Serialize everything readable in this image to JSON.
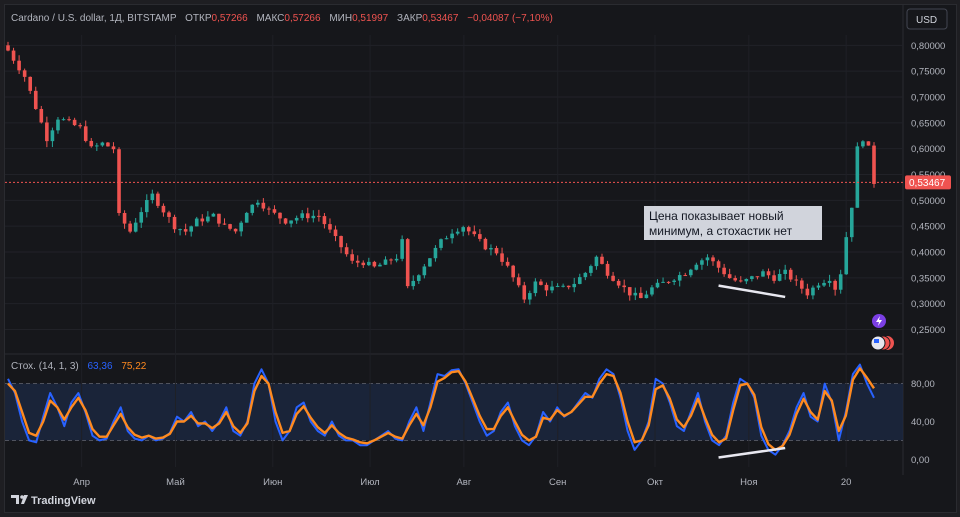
{
  "header": {
    "symbol": "Cardano / U.S. dollar, 1Д, BITSTAMP",
    "open_label": "ОТКР",
    "open_value": "0,57266",
    "high_label": "МАКС",
    "high_value": "0,57266",
    "low_label": "МИН",
    "low_value": "0,51997",
    "close_label": "ЗАКР",
    "close_value": "0,53467",
    "change": "−0,04087 (−7,10%)"
  },
  "currency_button": "USD",
  "annotation": "Цена показывает новый\nминимум, а стохастик нет",
  "last_price_tag": "0,53467",
  "stoch_legend": {
    "name": "Стох. (14, 1, 3)",
    "k": "63,36",
    "d": "75,22"
  },
  "brand": "TradingView",
  "colors": {
    "up": "#26a69a",
    "down": "#ef5350",
    "k_line": "#2962ff",
    "d_line": "#ff8a1f",
    "text": "#b2b5be",
    "bg": "#16171b"
  },
  "chart_data": [
    {
      "type": "candlestick",
      "title": "Cardano / U.S. dollar, 1Д, BITSTAMP",
      "x_labels": [
        "Апр",
        "Май",
        "Июн",
        "Июл",
        "Авг",
        "Сен",
        "Окт",
        "Ноя",
        "20"
      ],
      "y_ticks": [
        "0,80000",
        "0,75000",
        "0,70000",
        "0,65000",
        "0,60000",
        "0,55000",
        "0,50000",
        "0,45000",
        "0,40000",
        "0,35000",
        "0,30000",
        "0,25000"
      ],
      "ylim": [
        0.22,
        0.82
      ],
      "last_price": 0.53467,
      "trend_close": [
        [
          0,
          0.79
        ],
        [
          3,
          0.74
        ],
        [
          5,
          0.68
        ],
        [
          7,
          0.62
        ],
        [
          9,
          0.66
        ],
        [
          11,
          0.65
        ],
        [
          13,
          0.64
        ],
        [
          15,
          0.6
        ],
        [
          17,
          0.61
        ],
        [
          19,
          0.6
        ],
        [
          20,
          0.47
        ],
        [
          22,
          0.44
        ],
        [
          24,
          0.48
        ],
        [
          26,
          0.51
        ],
        [
          28,
          0.48
        ],
        [
          30,
          0.45
        ],
        [
          32,
          0.44
        ],
        [
          34,
          0.46
        ],
        [
          37,
          0.47
        ],
        [
          39,
          0.45
        ],
        [
          41,
          0.44
        ],
        [
          43,
          0.48
        ],
        [
          45,
          0.5
        ],
        [
          47,
          0.48
        ],
        [
          50,
          0.46
        ],
        [
          53,
          0.47
        ],
        [
          56,
          0.47
        ],
        [
          58,
          0.44
        ],
        [
          60,
          0.41
        ],
        [
          62,
          0.38
        ],
        [
          64,
          0.38
        ],
        [
          66,
          0.37
        ],
        [
          68,
          0.38
        ],
        [
          70,
          0.39
        ],
        [
          71,
          0.42
        ],
        [
          72,
          0.33
        ],
        [
          74,
          0.36
        ],
        [
          76,
          0.39
        ],
        [
          78,
          0.42
        ],
        [
          80,
          0.44
        ],
        [
          82,
          0.45
        ],
        [
          84,
          0.43
        ],
        [
          86,
          0.41
        ],
        [
          88,
          0.4
        ],
        [
          90,
          0.37
        ],
        [
          92,
          0.33
        ],
        [
          93,
          0.31
        ],
        [
          95,
          0.34
        ],
        [
          97,
          0.33
        ],
        [
          100,
          0.33
        ],
        [
          102,
          0.34
        ],
        [
          104,
          0.36
        ],
        [
          106,
          0.39
        ],
        [
          108,
          0.36
        ],
        [
          110,
          0.34
        ],
        [
          112,
          0.32
        ],
        [
          114,
          0.31
        ],
        [
          116,
          0.33
        ],
        [
          118,
          0.34
        ],
        [
          120,
          0.35
        ],
        [
          122,
          0.36
        ],
        [
          124,
          0.38
        ],
        [
          126,
          0.39
        ],
        [
          128,
          0.37
        ],
        [
          130,
          0.35
        ],
        [
          132,
          0.34
        ],
        [
          134,
          0.35
        ],
        [
          136,
          0.36
        ],
        [
          138,
          0.35
        ],
        [
          140,
          0.36
        ],
        [
          142,
          0.34
        ],
        [
          144,
          0.32
        ],
        [
          146,
          0.34
        ],
        [
          148,
          0.35
        ],
        [
          149,
          0.33
        ],
        [
          150,
          0.36
        ],
        [
          151,
          0.43
        ],
        [
          152,
          0.49
        ],
        [
          153,
          0.6
        ],
        [
          154,
          0.62
        ],
        [
          155,
          0.6
        ],
        [
          156,
          0.535
        ]
      ],
      "annotation_line": {
        "from": {
          "x_index": 128,
          "price": 0.335
        },
        "to": {
          "x_index": 140,
          "price": 0.313
        }
      }
    },
    {
      "type": "line",
      "title": "Стох. (14, 1, 3)",
      "y_ticks": [
        "80,00",
        "40,00",
        "0,00"
      ],
      "ylim": [
        -8,
        108
      ],
      "band": [
        20,
        80
      ],
      "series": [
        {
          "name": "%K",
          "values": [
            85,
            70,
            40,
            20,
            18,
            45,
            70,
            55,
            35,
            60,
            70,
            50,
            25,
            20,
            22,
            40,
            55,
            30,
            22,
            20,
            25,
            20,
            22,
            28,
            45,
            40,
            50,
            35,
            40,
            30,
            40,
            55,
            30,
            25,
            40,
            80,
            95,
            80,
            40,
            20,
            30,
            55,
            60,
            40,
            30,
            25,
            40,
            25,
            20,
            20,
            15,
            15,
            20,
            25,
            30,
            22,
            20,
            40,
            55,
            30,
            60,
            90,
            88,
            94,
            95,
            80,
            60,
            40,
            25,
            30,
            50,
            60,
            35,
            20,
            15,
            25,
            50,
            40,
            55,
            45,
            50,
            60,
            70,
            65,
            85,
            95,
            90,
            65,
            30,
            10,
            20,
            40,
            85,
            80,
            60,
            35,
            30,
            50,
            70,
            40,
            20,
            15,
            25,
            60,
            85,
            80,
            65,
            25,
            10,
            5,
            15,
            30,
            55,
            70,
            45,
            40,
            80,
            60,
            20,
            50,
            90,
            100,
            80,
            65
          ]
        },
        {
          "name": "%D",
          "values": [
            80,
            72,
            50,
            28,
            25,
            40,
            62,
            55,
            42,
            55,
            65,
            52,
            32,
            24,
            24,
            36,
            48,
            34,
            26,
            23,
            25,
            22,
            23,
            27,
            40,
            40,
            46,
            38,
            38,
            33,
            38,
            50,
            35,
            28,
            38,
            72,
            88,
            80,
            50,
            28,
            30,
            48,
            56,
            44,
            34,
            28,
            36,
            28,
            23,
            21,
            18,
            17,
            20,
            24,
            28,
            24,
            22,
            36,
            48,
            36,
            55,
            82,
            86,
            92,
            93,
            82,
            64,
            46,
            32,
            32,
            46,
            55,
            40,
            26,
            20,
            24,
            44,
            42,
            52,
            46,
            50,
            58,
            66,
            66,
            80,
            90,
            88,
            70,
            40,
            18,
            20,
            36,
            74,
            78,
            64,
            42,
            34,
            46,
            64,
            44,
            26,
            18,
            22,
            52,
            78,
            80,
            68,
            34,
            16,
            10,
            14,
            26,
            48,
            64,
            50,
            42,
            72,
            62,
            30,
            46,
            84,
            96,
            86,
            75
          ]
        }
      ],
      "annotation_line": {
        "from": {
          "x_index": 128,
          "value": 2
        },
        "to": {
          "x_index": 140,
          "value": 12
        }
      }
    }
  ]
}
